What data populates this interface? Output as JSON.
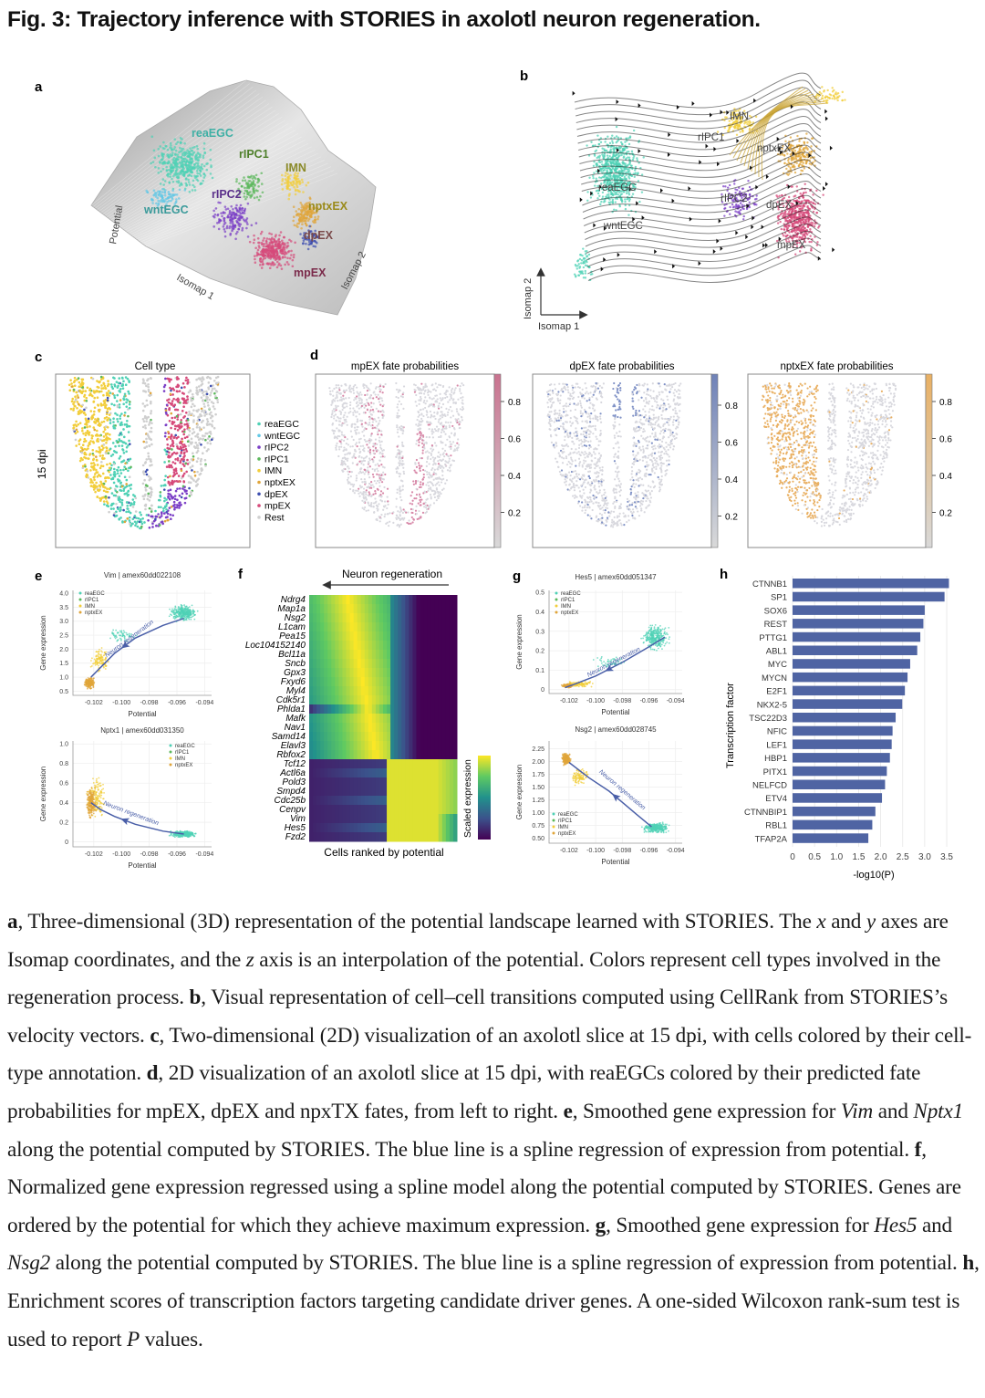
{
  "title": "Fig. 3: Trajectory inference with STORIES in axolotl neuron regeneration.",
  "colors": {
    "reaEGC": "#4fd1b5",
    "wntEGC": "#62c8e6",
    "rIPC2": "#7b3fc6",
    "rIPC1": "#5cb85c",
    "IMN": "#f2cd3a",
    "nptxEX": "#e0a53a",
    "dpEX": "#3e4fb0",
    "mpEX": "#d64a7a",
    "Rest": "#cfcfcf",
    "bar": "#4f64a3",
    "trend": "#4a5fa8"
  },
  "panel_a": {
    "label": "a",
    "cell_labels": [
      "reaEGC",
      "rIPC1",
      "IMN",
      "rIPC2",
      "wntEGC",
      "nptxEX",
      "dpEX",
      "mpEX"
    ],
    "axis_potential": "Potential",
    "axis_isomap1": "Isomap 1",
    "axis_isomap2": "Isomap 2"
  },
  "panel_b": {
    "label": "b",
    "cell_labels": [
      "IMN",
      "rIPC1",
      "nptxEX",
      "reaEGC",
      "rIPC2",
      "dpEX",
      "wntEGC",
      "mpEX"
    ],
    "axis_isomap1": "Isomap 1",
    "axis_isomap2": "Isomap 2"
  },
  "panel_c": {
    "label": "c",
    "title": "Cell type",
    "row_label": "15 dpi",
    "legend": [
      "reaEGC",
      "wntEGC",
      "rIPC2",
      "rIPC1",
      "IMN",
      "nptxEX",
      "dpEX",
      "mpEX",
      "Rest"
    ]
  },
  "panel_d": {
    "label": "d",
    "maps": [
      {
        "title": "mpEX fate probabilities",
        "color": "#c9728f",
        "ticks": [
          "0.8",
          "0.6",
          "0.4",
          "0.2"
        ]
      },
      {
        "title": "dpEX fate probabilities",
        "color": "#6f82b8",
        "ticks": [
          "0.8",
          "0.6",
          "0.4",
          "0.2"
        ]
      },
      {
        "title": "nptxEX fate probabilities",
        "color": "#e9b063",
        "ticks": [
          "0.8",
          "0.6",
          "0.4",
          "0.2"
        ]
      }
    ]
  },
  "chart_data": [
    {
      "panel": "e",
      "type": "scatter",
      "title": "Vim | amex60dd022108",
      "xlabel": "Potential",
      "ylabel": "Gene expression",
      "xlim": [
        -0.1035,
        -0.0935
      ],
      "ylim": [
        0.35,
        4.1
      ],
      "xticks": [
        "-0.102",
        "-0.100",
        "-0.098",
        "-0.096",
        "-0.094"
      ],
      "yticks": [
        "0.5",
        "1.0",
        "1.5",
        "2.0",
        "2.5",
        "3.0",
        "3.5",
        "4.0"
      ],
      "legend": [
        "reaEGC",
        "rIPC1",
        "IMN",
        "nptxEX"
      ],
      "legend_position": "top-left",
      "annotation": "Neuron regeneration",
      "trend": {
        "x": [
          -0.0955,
          -0.097,
          -0.099,
          -0.1005,
          -0.1015,
          -0.1022
        ],
        "y": [
          3.1,
          2.85,
          2.4,
          1.85,
          1.35,
          1.0
        ]
      }
    },
    {
      "panel": "e",
      "type": "scatter",
      "title": "Nptx1 | amex60dd031350",
      "xlabel": "Potential",
      "ylabel": "Gene expression",
      "xlim": [
        -0.1035,
        -0.0935
      ],
      "ylim": [
        -0.05,
        1.03
      ],
      "xticks": [
        "-0.102",
        "-0.100",
        "-0.098",
        "-0.096",
        "-0.094"
      ],
      "yticks": [
        "0",
        "0.2",
        "0.4",
        "0.6",
        "0.8",
        "1.0"
      ],
      "legend": [
        "reaEGC",
        "rIPC1",
        "IMN",
        "nptxEX"
      ],
      "legend_position": "top-right",
      "annotation": "Neuron regeneration",
      "trend": {
        "x": [
          -0.0955,
          -0.097,
          -0.099,
          -0.1005,
          -0.1015,
          -0.1022
        ],
        "y": [
          0.08,
          0.11,
          0.18,
          0.26,
          0.33,
          0.4
        ]
      }
    },
    {
      "panel": "f",
      "type": "heatmap",
      "header": "Neuron regeneration",
      "xlabel": "Cells ranked by potential",
      "colorbar_label": "Scaled expression",
      "genes": [
        "Ndrg4",
        "Map1a",
        "Nsg2",
        "L1cam",
        "Pea15",
        "Loc104152140",
        "Bcl11a",
        "Sncb",
        "Gpx3",
        "Fxyd6",
        "Myl4",
        "Cdk5r1",
        "Phlda1",
        "Mafk",
        "Nav1",
        "Samd14",
        "Elavl3",
        "Rbfox2",
        "Tcf12",
        "Actl6a",
        "Pold3",
        "Smpd4",
        "Cdc25b",
        "Cenpv",
        "Vim",
        "Hes5",
        "Fzd2"
      ],
      "high_side": [
        "left",
        "left",
        "left",
        "left",
        "left",
        "left",
        "left",
        "left",
        "left",
        "left",
        "left",
        "left",
        "left",
        "left",
        "left",
        "left",
        "left",
        "left",
        "right",
        "right",
        "right",
        "right",
        "right",
        "right",
        "right",
        "right",
        "right"
      ]
    },
    {
      "panel": "g",
      "type": "scatter",
      "title": "Hes5 | amex60dd051347",
      "xlabel": "Potential",
      "ylabel": "Gene expression",
      "xlim": [
        -0.1035,
        -0.0935
      ],
      "ylim": [
        -0.02,
        0.51
      ],
      "xticks": [
        "-0.102",
        "-0.100",
        "-0.098",
        "-0.096",
        "-0.094"
      ],
      "yticks": [
        "0",
        "0.1",
        "0.2",
        "0.3",
        "0.4",
        "0.5"
      ],
      "legend": [
        "reaEGC",
        "rIPC1",
        "IMN",
        "nptxEX"
      ],
      "legend_position": "top-left",
      "annotation": "Neuron regeneration",
      "trend": {
        "x": [
          -0.0948,
          -0.096,
          -0.098,
          -0.1,
          -0.1015,
          -0.1023
        ],
        "y": [
          0.27,
          0.22,
          0.14,
          0.07,
          0.03,
          0.01
        ]
      }
    },
    {
      "panel": "g",
      "type": "scatter",
      "title": "Nsg2 | amex60dd028745",
      "xlabel": "Potential",
      "ylabel": "Gene expression",
      "xlim": [
        -0.1035,
        -0.0935
      ],
      "ylim": [
        0.4,
        2.4
      ],
      "xticks": [
        "-0.102",
        "-0.100",
        "-0.098",
        "-0.096",
        "-0.094"
      ],
      "yticks": [
        "0.50",
        "0.75",
        "1.00",
        "1.25",
        "1.50",
        "1.75",
        "2.00",
        "2.25"
      ],
      "legend": [
        "reaEGC",
        "rIPC1",
        "IMN",
        "nptxEX"
      ],
      "legend_position": "bottom-left",
      "annotation": "Neuron regeneration",
      "trend": {
        "x": [
          -0.0958,
          -0.097,
          -0.098,
          -0.099,
          -0.1005,
          -0.102
        ],
        "y": [
          0.72,
          0.98,
          1.2,
          1.42,
          1.68,
          1.98
        ]
      }
    },
    {
      "panel": "h",
      "type": "bar",
      "orientation": "horizontal",
      "xlabel": "-log10(P)",
      "ylabel": "Transcription factor",
      "xlim": [
        0,
        3.7
      ],
      "xticks": [
        "0",
        "0.5",
        "1.0",
        "1.5",
        "2.0",
        "2.5",
        "3.0",
        "3.5"
      ],
      "categories": [
        "CTNNB1",
        "SP1",
        "SOX6",
        "REST",
        "PTTG1",
        "ABL1",
        "MYC",
        "MYCN",
        "E2F1",
        "NKX2-5",
        "TSC22D3",
        "NFIC",
        "LEF1",
        "HBP1",
        "PITX1",
        "NELFCD",
        "ETV4",
        "CTNNBIP1",
        "RBL1",
        "TFAP2A"
      ],
      "values": [
        3.55,
        3.45,
        3.0,
        2.97,
        2.9,
        2.83,
        2.67,
        2.61,
        2.55,
        2.49,
        2.34,
        2.27,
        2.25,
        2.21,
        2.14,
        2.1,
        2.03,
        1.88,
        1.81,
        1.72
      ],
      "grid": true
    }
  ],
  "panel_labels": {
    "e": "e",
    "f": "f",
    "g": "g",
    "h": "h"
  },
  "caption": [
    {
      "t": "a",
      "s": "b"
    },
    {
      "t": ", Three-dimensional (3D) representation of the potential landscape learned with STORIES. The ",
      "s": ""
    },
    {
      "t": "x",
      "s": "i"
    },
    {
      "t": " and ",
      "s": ""
    },
    {
      "t": "y",
      "s": "i"
    },
    {
      "t": " axes are Isomap coordinates, and the ",
      "s": ""
    },
    {
      "t": "z",
      "s": "i"
    },
    {
      "t": " axis is an interpolation of the potential. Colors represent cell types involved in the regeneration process. ",
      "s": ""
    },
    {
      "t": "b",
      "s": "b"
    },
    {
      "t": ", Visual representation of cell–cell transitions computed using CellRank from STORIES’s velocity vectors. ",
      "s": ""
    },
    {
      "t": "c",
      "s": "b"
    },
    {
      "t": ", Two-dimensional (2D) visualization of an axolotl slice at 15 dpi, with cells colored by their cell-type annotation. ",
      "s": ""
    },
    {
      "t": "d",
      "s": "b"
    },
    {
      "t": ", 2D visualization of an axolotl slice at 15 dpi, with reaEGCs colored by their predicted fate probabilities for mpEX, dpEX and npxTX fates, from left to right. ",
      "s": ""
    },
    {
      "t": "e",
      "s": "b"
    },
    {
      "t": ", Smoothed gene expression for ",
      "s": ""
    },
    {
      "t": "Vim",
      "s": "i"
    },
    {
      "t": " and ",
      "s": ""
    },
    {
      "t": "Nptx1",
      "s": "i"
    },
    {
      "t": " along the potential computed by STORIES. The blue line is a spline regression of expression from potential. ",
      "s": ""
    },
    {
      "t": "f",
      "s": "b"
    },
    {
      "t": ", Normalized gene expression regressed using a spline model along the potential computed by STORIES. Genes are ordered by the potential for which they achieve maximum expression. ",
      "s": ""
    },
    {
      "t": "g",
      "s": "b"
    },
    {
      "t": ", Smoothed gene expression for ",
      "s": ""
    },
    {
      "t": "Hes5",
      "s": "i"
    },
    {
      "t": " and ",
      "s": ""
    },
    {
      "t": "Nsg2",
      "s": "i"
    },
    {
      "t": " along the potential computed by STORIES. The blue line is a spline regression of expression from potential. ",
      "s": ""
    },
    {
      "t": "h",
      "s": "b"
    },
    {
      "t": ", Enrichment scores of transcription factors targeting candidate driver genes. A one-sided Wilcoxon rank-sum test is used to report ",
      "s": ""
    },
    {
      "t": "P",
      "s": "i"
    },
    {
      "t": " values.",
      "s": ""
    }
  ]
}
